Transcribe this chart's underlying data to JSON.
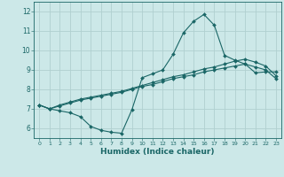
{
  "xlabel": "Humidex (Indice chaleur)",
  "bg_color": "#cce8e8",
  "grid_color": "#b0d0d0",
  "line_color": "#1a6666",
  "xlim": [
    -0.5,
    23.5
  ],
  "ylim": [
    5.5,
    12.5
  ],
  "xticks": [
    0,
    1,
    2,
    3,
    4,
    5,
    6,
    7,
    8,
    9,
    10,
    11,
    12,
    13,
    14,
    15,
    16,
    17,
    18,
    19,
    20,
    21,
    22,
    23
  ],
  "yticks": [
    6,
    7,
    8,
    9,
    10,
    11,
    12
  ],
  "line_max": [
    7.2,
    7.0,
    6.9,
    6.8,
    6.6,
    6.1,
    5.9,
    5.8,
    5.75,
    6.95,
    8.6,
    8.8,
    9.0,
    9.8,
    10.9,
    11.5,
    11.85,
    11.3,
    9.75,
    9.5,
    9.3,
    8.85,
    8.9,
    8.9
  ],
  "line_mean": [
    7.2,
    7.0,
    7.15,
    7.3,
    7.45,
    7.55,
    7.65,
    7.75,
    7.85,
    8.0,
    8.15,
    8.25,
    8.4,
    8.55,
    8.65,
    8.75,
    8.9,
    9.0,
    9.1,
    9.2,
    9.3,
    9.15,
    9.0,
    8.55
  ],
  "line_min": [
    7.2,
    7.0,
    7.2,
    7.35,
    7.5,
    7.6,
    7.7,
    7.8,
    7.9,
    8.05,
    8.2,
    8.35,
    8.5,
    8.65,
    8.75,
    8.9,
    9.05,
    9.15,
    9.3,
    9.45,
    9.55,
    9.4,
    9.2,
    8.7
  ]
}
